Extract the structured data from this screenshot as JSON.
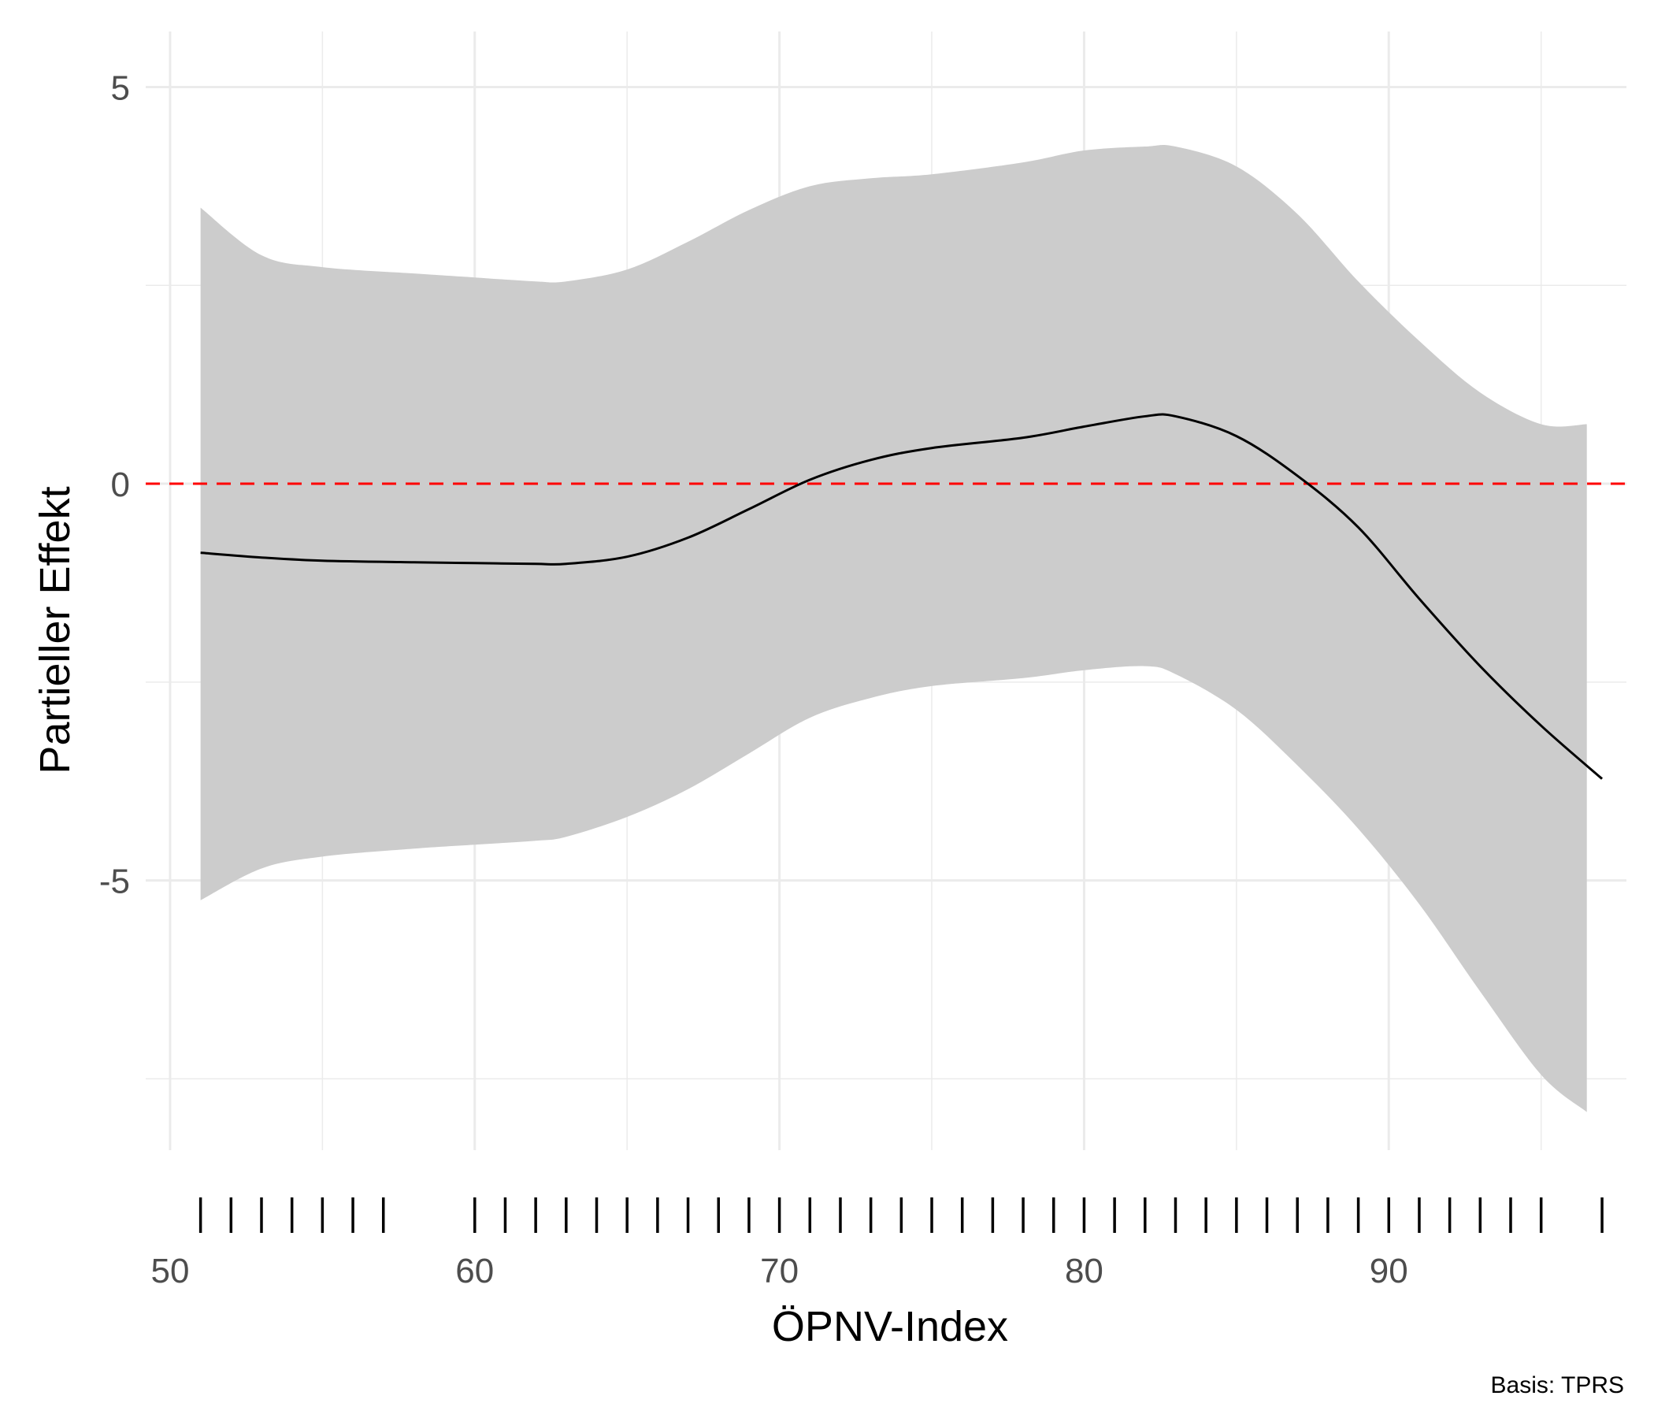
{
  "chart_data": {
    "type": "line",
    "xlabel": "ÖPNV-Index",
    "ylabel": "Partieller Effekt",
    "caption": "Basis: TPRS",
    "xlim": [
      49.2,
      97.8
    ],
    "ylim": [
      -8.4,
      5.7
    ],
    "x_ticks": [
      50,
      60,
      70,
      80,
      90
    ],
    "x_tick_labels": [
      "50",
      "60",
      "70",
      "80",
      "90"
    ],
    "y_ticks": [
      -5,
      0,
      5
    ],
    "y_tick_labels": [
      "-5",
      "0",
      "5"
    ],
    "grid": true,
    "reference_line": {
      "y": 0,
      "style": "dashed",
      "color": "#ff0000"
    },
    "colors": {
      "line": "#000000",
      "band": "#cccccc",
      "reference": "#ff0000",
      "rug": "#000000",
      "grid": "#ebebeb"
    },
    "series": [
      {
        "x": [
          51,
          53,
          55,
          58,
          60,
          62,
          63,
          65,
          67,
          69,
          71,
          73,
          75,
          78,
          80,
          82,
          83,
          85,
          87,
          89,
          91,
          93,
          95,
          97
        ],
        "y": [
          -0.87,
          -0.93,
          -0.97,
          -0.99,
          -1.0,
          -1.01,
          -1.01,
          -0.92,
          -0.68,
          -0.32,
          0.05,
          0.3,
          0.45,
          0.58,
          0.72,
          0.85,
          0.85,
          0.6,
          0.1,
          -0.55,
          -1.45,
          -2.3,
          -3.05,
          -3.72
        ],
        "lower": [
          -5.25,
          -4.85,
          -4.7,
          -4.6,
          -4.55,
          -4.5,
          -4.45,
          -4.2,
          -3.85,
          -3.4,
          -2.95,
          -2.7,
          -2.55,
          -2.45,
          -2.35,
          -2.3,
          -2.4,
          -2.85,
          -3.55,
          -4.35,
          -5.3,
          -6.4,
          -7.45,
          -7.92
        ],
        "upper": [
          3.48,
          2.88,
          2.73,
          2.65,
          2.6,
          2.55,
          2.55,
          2.7,
          3.05,
          3.45,
          3.75,
          3.85,
          3.9,
          4.05,
          4.2,
          4.25,
          4.25,
          4.0,
          3.4,
          2.55,
          1.8,
          1.15,
          0.75,
          0.75
        ]
      }
    ],
    "rug_x": [
      51,
      52,
      53,
      54,
      55,
      56,
      57,
      60,
      61,
      62,
      63,
      64,
      65,
      66,
      67,
      68,
      69,
      70,
      71,
      72,
      73,
      74,
      75,
      76,
      77,
      78,
      79,
      80,
      81,
      82,
      83,
      84,
      85,
      86,
      87,
      88,
      89,
      90,
      91,
      92,
      93,
      94,
      95,
      97
    ]
  }
}
